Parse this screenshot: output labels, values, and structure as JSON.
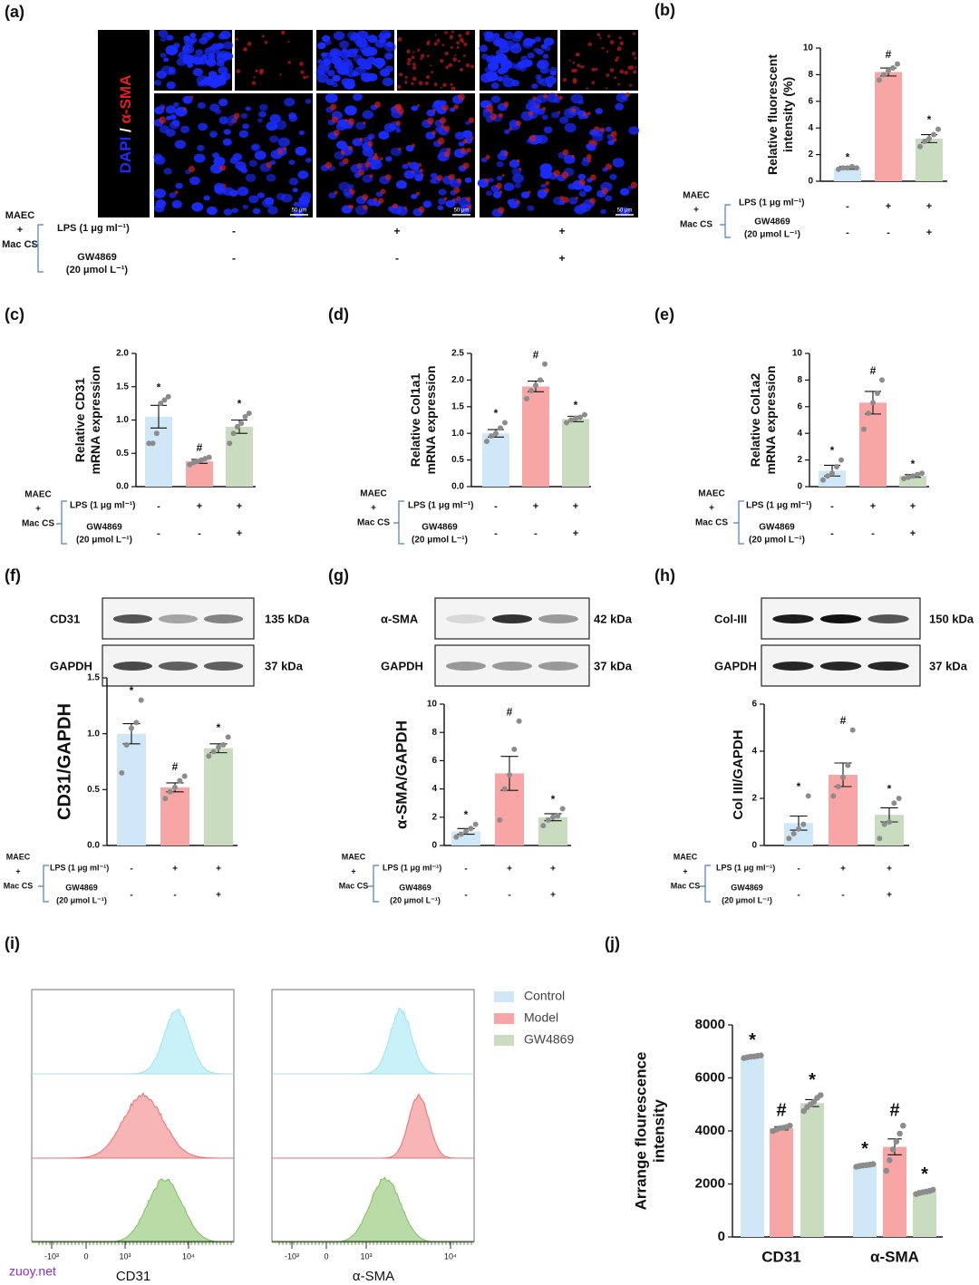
{
  "panel_labels": [
    "(a)",
    "(b)",
    "(c)",
    "(d)",
    "(e)",
    "(f)",
    "(g)",
    "(h)",
    "(i)",
    "(j)"
  ],
  "treatment": {
    "group": [
      "MAEC",
      "+",
      "Mac CS"
    ],
    "lps": "LPS (1 μg ml⁻¹)",
    "gw": [
      "GW4869",
      "(20 μmol L⁻¹)"
    ],
    "lps_signs": [
      "-",
      "+",
      "+"
    ],
    "gw_signs": [
      "-",
      "-",
      "+"
    ]
  },
  "images": {
    "stain": [
      "DAPI",
      "/",
      "α-SMA"
    ],
    "scale_bar": "50 μm"
  },
  "blots": [
    [
      {
        "protein": "CD31",
        "size": "135 kDa"
      },
      {
        "protein": "GAPDH",
        "size": "37 kDa"
      }
    ],
    [
      {
        "protein": "α-SMA",
        "size": "42 kDa"
      },
      {
        "protein": "GAPDH",
        "size": "37 kDa"
      }
    ],
    [
      {
        "protein": "Col-III",
        "size": "150 kDa"
      },
      {
        "protein": "GAPDH",
        "size": "37 kDa"
      }
    ]
  ],
  "flow": {
    "x_labels": [
      "CD31",
      "α-SMA"
    ],
    "xticks": [
      "-10³",
      "0",
      "10³",
      "10⁴"
    ]
  },
  "watermark": "zuoy.net",
  "chart_data": [
    {
      "type": "bar",
      "ylabel": [
        "Relative fluorescent",
        "intensity (%)"
      ],
      "colors": [
        "#cfe7f7",
        "#f7a5a5",
        "#c9dcc0"
      ],
      "values": [
        1.0,
        8.2,
        3.2
      ],
      "errors": [
        0.1,
        0.3,
        0.3
      ],
      "points": [
        [
          0.9,
          1.0,
          1.0,
          1.1,
          1.0
        ],
        [
          7.6,
          8.0,
          8.3,
          8.5,
          8.8
        ],
        [
          2.6,
          3.0,
          3.2,
          3.5,
          3.9
        ]
      ],
      "annotations": [
        "*",
        "#",
        "*"
      ],
      "ylim": [
        0,
        10
      ],
      "yticks": [
        0,
        2,
        4,
        6,
        8,
        10
      ]
    },
    {
      "type": "bar",
      "ylabel": [
        "Relative CD31",
        "mRNA expression"
      ],
      "colors": [
        "#cfe7f7",
        "#f7a5a5",
        "#c9dcc0"
      ],
      "values": [
        1.05,
        0.38,
        0.9
      ],
      "errors": [
        0.17,
        0.03,
        0.1
      ],
      "points": [
        [
          0.65,
          0.65,
          0.8,
          1.25,
          1.3,
          1.35
        ],
        [
          0.33,
          0.36,
          0.38,
          0.4,
          0.42,
          0.44
        ],
        [
          0.65,
          0.8,
          0.9,
          0.95,
          1.05,
          1.1
        ]
      ],
      "annotations": [
        "*",
        "#",
        "*"
      ],
      "ylim": [
        0,
        2
      ],
      "yticks": [
        {
          "value": 0,
          "label": "0.0"
        },
        0.5,
        {
          "value": 1,
          "label": "1.0"
        },
        1.5,
        {
          "value": 2,
          "label": "2.0"
        }
      ]
    },
    {
      "type": "bar",
      "ylabel": [
        "Relative Col1a1",
        "mRNA expression"
      ],
      "colors": [
        "#cfe7f7",
        "#f7a5a5",
        "#c9dcc0"
      ],
      "values": [
        1.0,
        1.88,
        1.27
      ],
      "errors": [
        0.07,
        0.1,
        0.05
      ],
      "points": [
        [
          0.85,
          0.95,
          1.0,
          1.1,
          1.2
        ],
        [
          1.65,
          1.8,
          1.9,
          2.0,
          2.3
        ],
        [
          1.2,
          1.25,
          1.28,
          1.3,
          1.35
        ]
      ],
      "annotations": [
        "*",
        "#",
        "*"
      ],
      "ylim": [
        0,
        2.5
      ],
      "yticks": [
        {
          "value": 0,
          "label": "0.0"
        },
        0.5,
        {
          "value": 1,
          "label": "1.0"
        },
        1.5,
        {
          "value": 2,
          "label": "2.0"
        },
        2.5
      ]
    },
    {
      "type": "bar",
      "ylabel": [
        "Relative Col1a2",
        "mRNA expression"
      ],
      "colors": [
        "#cfe7f7",
        "#f7a5a5",
        "#c9dcc0"
      ],
      "values": [
        1.2,
        6.3,
        0.8
      ],
      "errors": [
        0.4,
        0.85,
        0.1
      ],
      "points": [
        [
          0.5,
          0.8,
          1.0,
          1.5,
          2.0
        ],
        [
          4.3,
          5.5,
          6.3,
          7.0,
          8.0
        ],
        [
          0.6,
          0.7,
          0.8,
          0.9,
          1.0
        ]
      ],
      "annotations": [
        "*",
        "#",
        "*"
      ],
      "ylim": [
        0,
        10
      ],
      "yticks": [
        0,
        2,
        4,
        6,
        8,
        10
      ]
    },
    {
      "type": "bar",
      "ylabel": [
        "CD31/GAPDH"
      ],
      "colors": [
        "#cfe7f7",
        "#f7a5a5",
        "#c9dcc0"
      ],
      "values": [
        1.0,
        0.52,
        0.87
      ],
      "errors": [
        0.09,
        0.04,
        0.04
      ],
      "points": [
        [
          0.65,
          0.9,
          1.05,
          1.1,
          1.3
        ],
        [
          0.42,
          0.48,
          0.52,
          0.58,
          0.62
        ],
        [
          0.8,
          0.84,
          0.88,
          0.9,
          0.97
        ]
      ],
      "annotations": [
        "*",
        "#",
        "*"
      ],
      "ylim": [
        0,
        1.5
      ],
      "yticks": [
        {
          "value": 0,
          "label": "0.0"
        },
        0.5,
        {
          "value": 1,
          "label": "1.0"
        },
        1.5
      ]
    },
    {
      "type": "bar",
      "ylabel": [
        "α-SMA/GAPDH"
      ],
      "colors": [
        "#cfe7f7",
        "#f7a5a5",
        "#c9dcc0"
      ],
      "values": [
        1.0,
        5.1,
        2.0
      ],
      "errors": [
        0.2,
        1.2,
        0.25
      ],
      "points": [
        [
          0.6,
          0.8,
          1.0,
          1.2,
          1.5
        ],
        [
          1.8,
          4.0,
          5.0,
          6.8,
          8.8
        ],
        [
          1.4,
          1.8,
          2.0,
          2.1,
          2.6
        ]
      ],
      "annotations": [
        "*",
        "#",
        "*"
      ],
      "ylim": [
        0,
        10
      ],
      "yticks": [
        0,
        2,
        4,
        6,
        8,
        10
      ]
    },
    {
      "type": "bar",
      "ylabel": [
        "Col III/GAPDH"
      ],
      "colors": [
        "#cfe7f7",
        "#f7a5a5",
        "#c9dcc0"
      ],
      "values": [
        0.95,
        3.0,
        1.3
      ],
      "errors": [
        0.3,
        0.5,
        0.3
      ],
      "points": [
        [
          0.3,
          0.5,
          0.7,
          0.9,
          2.1
        ],
        [
          2.1,
          2.5,
          2.9,
          3.4,
          4.9
        ],
        [
          0.3,
          0.9,
          1.0,
          1.8,
          2.0
        ]
      ],
      "annotations": [
        "*",
        "#",
        "*"
      ],
      "ylim": [
        0,
        6
      ],
      "yticks": [
        0,
        2,
        4,
        6
      ]
    },
    {
      "type": "bar",
      "ylabel": [
        "Arrange flourescence",
        "intensity"
      ],
      "categories": [
        "CD31",
        "α-SMA"
      ],
      "series": [
        {
          "name": "Control",
          "color": "#cfe7f7",
          "values": [
            6800,
            2700
          ],
          "errors": [
            30,
            30
          ],
          "points": [
            [
              6750,
              6780,
              6800,
              6810,
              6830,
              6850
            ],
            [
              2650,
              2680,
              2700,
              2710,
              2730,
              2750
            ]
          ],
          "annotations": [
            "*",
            "*"
          ]
        },
        {
          "name": "Model",
          "color": "#f7a5a5",
          "values": [
            4100,
            3400
          ],
          "errors": [
            60,
            300
          ],
          "points": [
            [
              4000,
              4050,
              4100,
              4120,
              4150,
              4200
            ],
            [
              2500,
              2900,
              3300,
              3600,
              3900,
              4200
            ]
          ],
          "annotations": [
            "#",
            "#"
          ]
        },
        {
          "name": "GW4869",
          "color": "#c9dcc0",
          "values": [
            5050,
            1700
          ],
          "errors": [
            130,
            40
          ],
          "points": [
            [
              4750,
              4900,
              5000,
              5100,
              5250,
              5350
            ],
            [
              1620,
              1660,
              1690,
              1710,
              1740,
              1780
            ]
          ],
          "annotations": [
            "*",
            "*"
          ]
        }
      ],
      "ylim": [
        0,
        8000
      ],
      "yticks": [
        0,
        2000,
        4000,
        6000,
        8000
      ]
    }
  ]
}
